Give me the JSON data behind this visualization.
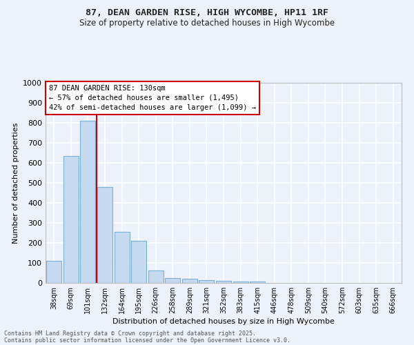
{
  "title1": "87, DEAN GARDEN RISE, HIGH WYCOMBE, HP11 1RF",
  "title2": "Size of property relative to detached houses in High Wycombe",
  "xlabel": "Distribution of detached houses by size in High Wycombe",
  "ylabel": "Number of detached properties",
  "bar_labels": [
    "38sqm",
    "69sqm",
    "101sqm",
    "132sqm",
    "164sqm",
    "195sqm",
    "226sqm",
    "258sqm",
    "289sqm",
    "321sqm",
    "352sqm",
    "383sqm",
    "415sqm",
    "446sqm",
    "478sqm",
    "509sqm",
    "540sqm",
    "572sqm",
    "603sqm",
    "635sqm",
    "666sqm"
  ],
  "bar_values": [
    110,
    635,
    810,
    480,
    255,
    210,
    63,
    25,
    20,
    15,
    10,
    8,
    6,
    0,
    0,
    0,
    0,
    0,
    0,
    0,
    0
  ],
  "bar_color": "#c5d9f0",
  "bar_edge_color": "#7bafd4",
  "vline_color": "#cc0000",
  "annotation_text": "87 DEAN GARDEN RISE: 130sqm\n← 57% of detached houses are smaller (1,495)\n42% of semi-detached houses are larger (1,099) →",
  "annotation_box_color": "#ffffff",
  "annotation_box_edge": "#cc0000",
  "ylim": [
    0,
    1000
  ],
  "yticks": [
    0,
    100,
    200,
    300,
    400,
    500,
    600,
    700,
    800,
    900,
    1000
  ],
  "footer1": "Contains HM Land Registry data © Crown copyright and database right 2025.",
  "footer2": "Contains public sector information licensed under the Open Government Licence v3.0.",
  "bg_color": "#edf2fa",
  "grid_color": "#ffffff"
}
